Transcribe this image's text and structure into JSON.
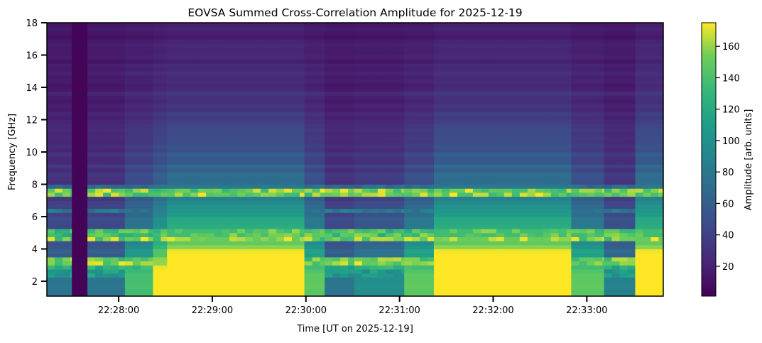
{
  "chart_data": {
    "type": "heatmap",
    "title": "EOVSA Summed Cross-Correlation Amplitude for 2025-12-19",
    "xlabel": "Time [UT on 2025-12-19]",
    "ylabel": "Frequency [GHz]",
    "colorbar_label": "Amplitude [arb. units]",
    "colormap": "viridis",
    "time_start": "22:27:14",
    "time_end": "22:33:49",
    "duration_s": 395,
    "xlim_s": [
      0,
      395
    ],
    "ylim": [
      1.08,
      18
    ],
    "clim": [
      1,
      175
    ],
    "x_ticks_s": [
      46,
      106,
      166,
      226,
      286,
      346
    ],
    "x_tick_labels": [
      "22:28:00",
      "22:29:00",
      "22:30:00",
      "22:31:00",
      "22:32:00",
      "22:33:00"
    ],
    "y_ticks": [
      2,
      4,
      6,
      8,
      10,
      12,
      14,
      16,
      18
    ],
    "y_tick_labels": [
      "2",
      "4",
      "6",
      "8",
      "10",
      "12",
      "14",
      "16",
      "18"
    ],
    "colorbar_ticks": [
      20,
      40,
      60,
      80,
      100,
      120,
      140,
      160
    ],
    "colorbar_tick_labels": [
      "20",
      "40",
      "60",
      "80",
      "100",
      "120",
      "140",
      "160"
    ],
    "time_segments": [
      {
        "start_s": 0,
        "end_s": 16,
        "level": 0.25
      },
      {
        "start_s": 16,
        "end_s": 26,
        "level": 0,
        "dead": true
      },
      {
        "start_s": 26,
        "end_s": 50,
        "level": 0.25
      },
      {
        "start_s": 50,
        "end_s": 68,
        "level": 0.55
      },
      {
        "start_s": 68,
        "end_s": 77,
        "level": 0.8
      },
      {
        "start_s": 77,
        "end_s": 165,
        "level": 1.0
      },
      {
        "start_s": 165,
        "end_s": 178,
        "level": 0.6
      },
      {
        "start_s": 178,
        "end_s": 197,
        "level": 0.25
      },
      {
        "start_s": 197,
        "end_s": 229,
        "level": 0.35
      },
      {
        "start_s": 229,
        "end_s": 248,
        "level": 0.6
      },
      {
        "start_s": 248,
        "end_s": 336,
        "level": 1.0
      },
      {
        "start_s": 336,
        "end_s": 357,
        "level": 0.6
      },
      {
        "start_s": 357,
        "end_s": 377,
        "level": 0.3
      },
      {
        "start_s": 377,
        "end_s": 395,
        "level": 1.0
      }
    ],
    "spectral_profile": {
      "peak_amplitude": 200,
      "reference_ghz": 2.5,
      "decay_ghz": 4.5
    },
    "rfi_bands": [
      {
        "freq_ghz": 7.5,
        "amplitude": 175
      },
      {
        "freq_ghz": 7.9,
        "amplitude": 80
      },
      {
        "freq_ghz": 6.3,
        "amplitude": 90
      },
      {
        "freq_ghz": 5.0,
        "amplitude": 160
      },
      {
        "freq_ghz": 4.85,
        "amplitude": 120
      },
      {
        "freq_ghz": 4.6,
        "amplitude": 175
      },
      {
        "freq_ghz": 3.4,
        "amplitude": 170
      },
      {
        "freq_ghz": 3.2,
        "amplitude": 175
      },
      {
        "freq_ghz": 3.0,
        "amplitude": 140
      },
      {
        "freq_ghz": 2.7,
        "amplitude": 110
      },
      {
        "freq_ghz": 2.5,
        "amplitude": 120
      }
    ]
  }
}
